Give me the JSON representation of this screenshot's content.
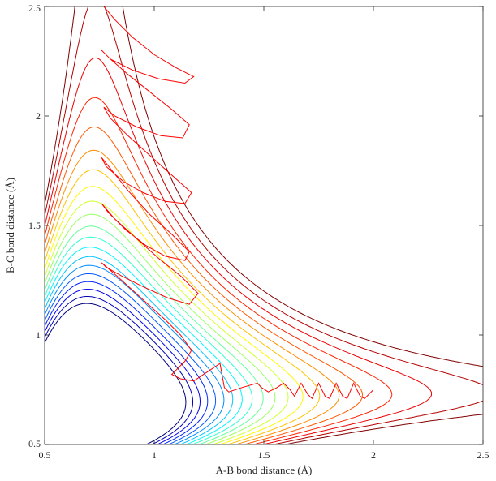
{
  "chart_data": {
    "type": "line",
    "title": "",
    "xlabel": "A-B bond distance (Å)",
    "ylabel": "B-C bond distance (Å)",
    "xlim": [
      0.5,
      2.5
    ],
    "ylim": [
      0.5,
      2.5
    ],
    "xticks": [
      0.5,
      1,
      1.5,
      2,
      2.5
    ],
    "yticks": [
      0.5,
      1,
      1.5,
      2,
      2.5
    ],
    "xtick_labels": [
      "0.5",
      "1",
      "1.5",
      "2",
      "2.5"
    ],
    "ytick_labels": [
      "0.5",
      "1",
      "1.5",
      "2",
      "2.5"
    ],
    "grid": false,
    "legend": "none",
    "colormap": "jet",
    "contour_levels": 20,
    "trajectory_color": "#ff0000",
    "trajectory": {
      "x": [
        0.77,
        0.82,
        0.9,
        1.0,
        1.1,
        1.18,
        1.14,
        1.02,
        0.9,
        0.8,
        0.76,
        0.8,
        0.88,
        0.98,
        1.08,
        1.16,
        1.13,
        1.03,
        0.92,
        0.82,
        0.77,
        0.8,
        0.88,
        0.98,
        1.08,
        1.17,
        1.14,
        1.05,
        0.95,
        0.86,
        0.78,
        0.76,
        0.8,
        0.88,
        0.98,
        1.08,
        1.16,
        1.14,
        1.05,
        0.96,
        0.87,
        0.79,
        0.76,
        0.82,
        0.92,
        1.02,
        1.12,
        1.2,
        1.16,
        1.06,
        0.95,
        0.85,
        0.78,
        0.76,
        0.84,
        0.95,
        1.05,
        1.12,
        1.17,
        1.14,
        1.1,
        1.08,
        1.12,
        1.18,
        1.24,
        1.3,
        1.32,
        1.34,
        1.4,
        1.47,
        1.49,
        1.52,
        1.56,
        1.59,
        1.62,
        1.64,
        1.67,
        1.7,
        1.72,
        1.75,
        1.78,
        1.8,
        1.83,
        1.86,
        1.88,
        1.91,
        1.94,
        1.96,
        2.0
      ],
      "y": [
        2.5,
        2.44,
        2.36,
        2.28,
        2.22,
        2.18,
        2.15,
        2.17,
        2.21,
        2.26,
        2.3,
        2.26,
        2.19,
        2.11,
        2.03,
        1.96,
        1.9,
        1.91,
        1.95,
        2.0,
        2.04,
        1.99,
        1.91,
        1.82,
        1.73,
        1.65,
        1.6,
        1.61,
        1.65,
        1.7,
        1.77,
        1.81,
        1.76,
        1.66,
        1.55,
        1.46,
        1.38,
        1.34,
        1.36,
        1.41,
        1.48,
        1.56,
        1.6,
        1.53,
        1.44,
        1.35,
        1.27,
        1.19,
        1.14,
        1.17,
        1.22,
        1.27,
        1.31,
        1.33,
        1.26,
        1.16,
        1.07,
        1.0,
        0.93,
        0.88,
        0.84,
        0.82,
        0.8,
        0.79,
        0.83,
        0.87,
        0.76,
        0.74,
        0.76,
        0.78,
        0.76,
        0.74,
        0.76,
        0.78,
        0.75,
        0.72,
        0.78,
        0.73,
        0.71,
        0.78,
        0.72,
        0.71,
        0.78,
        0.72,
        0.71,
        0.78,
        0.72,
        0.71,
        0.75
      ]
    }
  }
}
